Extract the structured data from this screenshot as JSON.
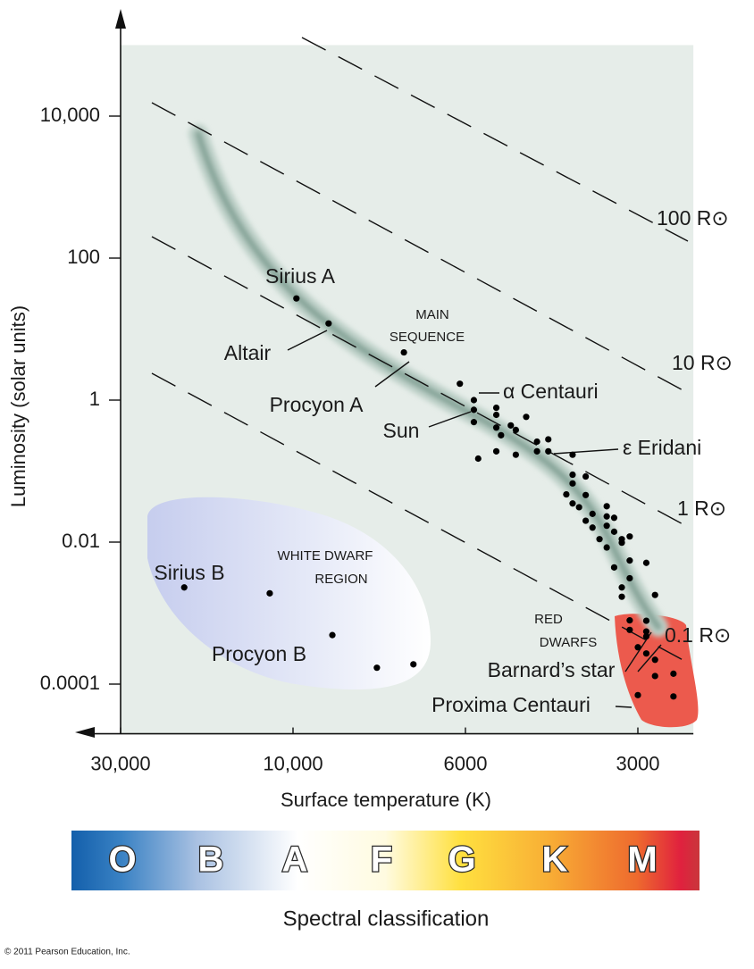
{
  "chart_data": {
    "type": "scatter",
    "x_label": "Surface temperature (K)",
    "y_label": "Luminosity (solar units)",
    "x_scale": "log",
    "y_scale": "log",
    "xlim": [
      30000,
      2400
    ],
    "ylim": [
      2e-05,
      100000
    ],
    "xticks": [
      {
        "value": 30000,
        "label": "30,000"
      },
      {
        "value": 10000,
        "label": "10,000"
      },
      6000,
      3000
    ],
    "yticks": [
      {
        "value": 10000,
        "label": "10,000"
      },
      100,
      1,
      0.01,
      0.0001
    ],
    "color": "#000000",
    "x": [
      5800,
      5800,
      5700,
      5300,
      5300,
      5300,
      5200,
      5300,
      5000,
      4900,
      4900,
      4700,
      4500,
      4500,
      4300,
      3900,
      3900,
      3900,
      3700,
      4000,
      3900,
      3800,
      3700,
      3700,
      3600,
      3600,
      3400,
      3400,
      3400,
      3300,
      3300,
      3200,
      3200,
      3500,
      3400,
      3100,
      3100,
      3300,
      3200,
      3100,
      2900,
      2800,
      3200,
      3100,
      3100,
      2900,
      2900,
      2900,
      2800,
      2800,
      2600,
      3000,
      2600,
      11600,
      7800,
      7000
    ],
    "y": [
      0.73,
      0.49,
      0.15,
      0.62,
      0.78,
      0.41,
      0.32,
      0.19,
      0.44,
      0.17,
      0.38,
      0.58,
      0.26,
      0.19,
      0.19,
      0.17,
      0.089,
      0.067,
      0.084,
      0.047,
      0.035,
      0.031,
      0.046,
      0.02,
      0.025,
      0.016,
      0.032,
      0.023,
      0.017,
      0.022,
      0.014,
      0.011,
      0.0098,
      0.011,
      0.0084,
      0.012,
      0.0055,
      0.0044,
      0.0023,
      0.0031,
      0.0051,
      0.0018,
      0.0017,
      0.00058,
      0.00079,
      0.00047,
      0.00055,
      0.00027,
      0.00022,
      0.00013,
      0.00014,
      0.00033,
      6.7e-05,
      0.0019,
      0.00017,
      0.00019
    ],
    "labeled_stars": [
      {
        "name": "Sirius A",
        "x": 9900,
        "y": 27
      },
      {
        "name": "Altair",
        "x": 9000,
        "y": 12
      },
      {
        "name": "Procyon A",
        "x": 7200,
        "y": 4.7
      },
      {
        "name": "α Centauri",
        "x": 6100,
        "y": 1.7
      },
      {
        "name": "Sun",
        "x": 5800,
        "y": 1
      },
      {
        "name": "ε Eridani",
        "x": 4300,
        "y": 0.28
      },
      {
        "name": "Sirius B",
        "x": 20000,
        "y": 0.0023
      },
      {
        "name": "Procyon  B",
        "x": 8900,
        "y": 0.00049
      },
      {
        "name": "Barnard’s  star",
        "x": 2900,
        "y": 0.00078
      },
      {
        "name": "Proxima Centauri",
        "x": 3000,
        "y": 7e-05
      }
    ],
    "radius_labels": [
      "100 R⊙",
      "10 R⊙",
      "1  R⊙",
      "0.1 R⊙"
    ],
    "regions": {
      "main_sequence": [
        "MAIN",
        "SEQUENCE"
      ],
      "white_dwarf": [
        "WHITE DWARF",
        "REGION"
      ],
      "red_dwarf": [
        "RED",
        "DWARFS"
      ]
    },
    "spectral_classes": [
      "O",
      "B",
      "A",
      "F",
      "G",
      "K",
      "M"
    ],
    "spectral_label": "Spectral classification"
  },
  "credit": "© 2011 Pearson Education, Inc."
}
